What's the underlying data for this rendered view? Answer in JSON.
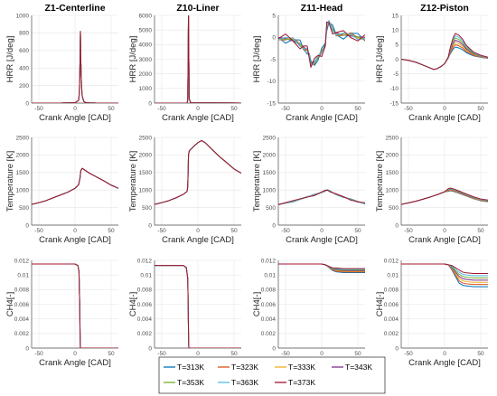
{
  "chart_data": [
    {
      "id": "p1",
      "row": 0,
      "col": 0,
      "type": "line",
      "title": "Z1-Centerline",
      "xlabel": "Crank Angle [CAD]",
      "ylabel": "HRR [J/deg]",
      "xlim": [
        -60,
        60
      ],
      "ylim": [
        0,
        1000
      ],
      "xticks": [
        -50,
        0,
        50
      ],
      "yticks": [
        0,
        200,
        400,
        600,
        800,
        1000
      ],
      "grid": true,
      "curve": {
        "x": [
          -60,
          -20,
          0,
          5,
          6,
          7,
          7.5,
          8,
          9,
          10,
          12,
          15,
          20,
          30,
          60
        ],
        "y": [
          0,
          0,
          5,
          30,
          120,
          500,
          820,
          500,
          200,
          80,
          20,
          5,
          2,
          0,
          0
        ]
      }
    },
    {
      "id": "p2",
      "row": 0,
      "col": 1,
      "type": "line",
      "title": "Z10-Liner",
      "xlabel": "Crank Angle [CAD]",
      "ylabel": "HRR [J/deg]",
      "xlim": [
        -60,
        60
      ],
      "ylim": [
        0,
        6000
      ],
      "xticks": [
        -50,
        0,
        50
      ],
      "yticks": [
        0,
        1000,
        2000,
        3000,
        4000,
        5000,
        6000
      ],
      "grid": true,
      "curve": {
        "x": [
          -60,
          -20,
          -15,
          -14,
          -13.5,
          -13,
          -12.5,
          -12,
          -10,
          60
        ],
        "y": [
          0,
          0,
          10,
          200,
          3500,
          6200,
          3000,
          300,
          20,
          0
        ]
      }
    },
    {
      "id": "p3",
      "row": 0,
      "col": 2,
      "type": "line",
      "title": "Z11-Head",
      "xlabel": "Crank Angle [CAD]",
      "ylabel": "HRR [J/deg]",
      "xlim": [
        -60,
        60
      ],
      "ylim": [
        -15,
        5
      ],
      "xticks": [
        -50,
        0,
        50
      ],
      "yticks": [
        -15,
        -10,
        -5,
        0,
        5
      ],
      "grid": true,
      "curve": {
        "x": [
          -60,
          -50,
          -40,
          -30,
          -25,
          -20,
          -17,
          -15,
          -10,
          -5,
          0,
          5,
          7,
          10,
          15,
          20,
          30,
          40,
          50,
          60
        ],
        "y": [
          0,
          -0.3,
          -0.8,
          -1.6,
          -2.2,
          -3.0,
          -4.5,
          -6.0,
          -5.5,
          -4.8,
          -3.5,
          -1.5,
          2.5,
          3.2,
          1.8,
          1.0,
          0.5,
          0.3,
          0.1,
          0
        ]
      }
    },
    {
      "id": "p4",
      "row": 0,
      "col": 3,
      "type": "line",
      "title": "Z12-Piston",
      "xlabel": "Crank Angle [CAD]",
      "ylabel": "HRR [J/deg]",
      "xlim": [
        -60,
        60
      ],
      "ylim": [
        -15,
        15
      ],
      "xticks": [
        -50,
        0,
        50
      ],
      "yticks": [
        -15,
        -10,
        -5,
        0,
        5,
        10,
        15
      ],
      "grid": true,
      "curve": {
        "x": [
          -60,
          -50,
          -40,
          -30,
          -20,
          -15,
          -10,
          -5,
          0,
          5,
          8,
          12,
          15,
          20,
          25,
          30,
          40,
          50,
          60
        ],
        "y": [
          0,
          -0.4,
          -1.0,
          -2.0,
          -3.0,
          -3.5,
          -3.2,
          -2.5,
          -1.5,
          0.5,
          3.0,
          5.5,
          6.5,
          6.0,
          5.0,
          3.5,
          1.8,
          1.0,
          0.5
        ]
      }
    },
    {
      "id": "p5",
      "row": 1,
      "col": 0,
      "type": "line",
      "title": "",
      "xlabel": "Crank Angle [CAD]",
      "ylabel": "Temperature [K]",
      "xlim": [
        -60,
        60
      ],
      "ylim": [
        0,
        2500
      ],
      "xticks": [
        -50,
        0,
        50
      ],
      "yticks": [
        0,
        500,
        1000,
        1500,
        2000,
        2500
      ],
      "grid": true,
      "curve": {
        "x": [
          -60,
          -50,
          -40,
          -30,
          -20,
          -10,
          0,
          5,
          7,
          8,
          10,
          12,
          20,
          30,
          40,
          50,
          60
        ],
        "y": [
          590,
          640,
          700,
          780,
          860,
          940,
          1050,
          1150,
          1350,
          1550,
          1620,
          1590,
          1480,
          1370,
          1260,
          1140,
          1050
        ]
      }
    },
    {
      "id": "p6",
      "row": 1,
      "col": 1,
      "type": "line",
      "title": "",
      "xlabel": "Crank Angle [CAD]",
      "ylabel": "Temperature [K]",
      "xlim": [
        -60,
        60
      ],
      "ylim": [
        0,
        2500
      ],
      "xticks": [
        -50,
        0,
        50
      ],
      "yticks": [
        0,
        500,
        1000,
        1500,
        2000,
        2500
      ],
      "grid": true,
      "curve": {
        "x": [
          -60,
          -50,
          -40,
          -30,
          -20,
          -15,
          -14,
          -13,
          -12,
          -10,
          -5,
          0,
          5,
          10,
          20,
          30,
          40,
          50,
          60
        ],
        "y": [
          590,
          640,
          700,
          780,
          880,
          960,
          1100,
          2000,
          2110,
          2160,
          2260,
          2350,
          2410,
          2350,
          2150,
          1950,
          1780,
          1600,
          1480
        ]
      }
    },
    {
      "id": "p7",
      "row": 1,
      "col": 2,
      "type": "line",
      "title": "",
      "xlabel": "Crank Angle [CAD]",
      "ylabel": "Temperature [K]",
      "xlim": [
        -60,
        60
      ],
      "ylim": [
        0,
        2500
      ],
      "xticks": [
        -50,
        0,
        50
      ],
      "yticks": [
        0,
        500,
        1000,
        1500,
        2000,
        2500
      ],
      "grid": true,
      "curve": {
        "x": [
          -60,
          -40,
          -20,
          -10,
          0,
          5,
          8,
          12,
          20,
          30,
          40,
          50,
          60
        ],
        "y": [
          590,
          680,
          800,
          860,
          940,
          980,
          1000,
          960,
          880,
          800,
          730,
          670,
          620
        ]
      }
    },
    {
      "id": "p8",
      "row": 1,
      "col": 3,
      "type": "line",
      "title": "",
      "xlabel": "Crank Angle [CAD]",
      "ylabel": "Temperature [K]",
      "xlim": [
        -60,
        60
      ],
      "ylim": [
        0,
        2500
      ],
      "xticks": [
        -50,
        0,
        50
      ],
      "yticks": [
        0,
        500,
        1000,
        1500,
        2000,
        2500
      ],
      "grid": true,
      "curve": {
        "x": [
          -60,
          -40,
          -20,
          -10,
          0,
          5,
          8,
          12,
          20,
          30,
          40,
          50,
          60
        ],
        "y": [
          590,
          680,
          800,
          870,
          950,
          1000,
          1020,
          1000,
          940,
          860,
          780,
          720,
          690
        ]
      }
    },
    {
      "id": "p9",
      "row": 2,
      "col": 0,
      "type": "line",
      "title": "",
      "xlabel": "Crank Angle [CAD]",
      "ylabel": "CH4[-]",
      "xlim": [
        -60,
        60
      ],
      "ylim": [
        0,
        0.012
      ],
      "xticks": [
        -50,
        0,
        50
      ],
      "yticks": [
        0,
        0.002,
        0.004,
        0.006,
        0.008,
        0.01,
        0.012
      ],
      "grid": true,
      "curve": {
        "x": [
          -60,
          0,
          4,
          5.5,
          6.5,
          7,
          7.5,
          60
        ],
        "y": [
          0.0115,
          0.0115,
          0.0113,
          0.0105,
          0.006,
          0.002,
          0,
          0
        ]
      }
    },
    {
      "id": "p10",
      "row": 2,
      "col": 1,
      "type": "line",
      "title": "",
      "xlabel": "Crank Angle [CAD]",
      "ylabel": "CH4[-]",
      "xlim": [
        -60,
        60
      ],
      "ylim": [
        0,
        0.012
      ],
      "xticks": [
        -50,
        0,
        50
      ],
      "yticks": [
        0,
        0.002,
        0.004,
        0.006,
        0.008,
        0.01,
        0.012
      ],
      "grid": true,
      "curve": {
        "x": [
          -60,
          -20,
          -16,
          -14,
          -13.5,
          -13,
          -12.5,
          60
        ],
        "y": [
          0.0113,
          0.0113,
          0.011,
          0.0095,
          0.006,
          0.002,
          0,
          0
        ]
      }
    },
    {
      "id": "p11",
      "row": 2,
      "col": 2,
      "type": "line",
      "title": "",
      "xlabel": "Crank Angle [CAD]",
      "ylabel": "CH4[-]",
      "xlim": [
        -60,
        60
      ],
      "ylim": [
        0,
        0.012
      ],
      "xticks": [
        -50,
        0,
        50
      ],
      "yticks": [
        0,
        0.002,
        0.004,
        0.006,
        0.008,
        0.01,
        0.012
      ],
      "grid": true,
      "curve": {
        "x": [
          -60,
          0,
          5,
          10,
          15,
          20,
          30,
          60
        ],
        "y": [
          0.0115,
          0.0115,
          0.0114,
          0.0111,
          0.0108,
          0.0107,
          0.0106,
          0.0106
        ]
      }
    },
    {
      "id": "p12",
      "row": 2,
      "col": 3,
      "type": "line",
      "title": "",
      "xlabel": "Crank Angle [CAD]",
      "ylabel": "CH4[-]",
      "xlim": [
        -60,
        60
      ],
      "ylim": [
        0,
        0.012
      ],
      "xticks": [
        -50,
        0,
        50
      ],
      "yticks": [
        0,
        0.002,
        0.004,
        0.006,
        0.008,
        0.01,
        0.012
      ],
      "grid": true,
      "curve": {
        "x": [
          -60,
          0,
          5,
          10,
          15,
          20,
          25,
          30,
          40,
          50,
          60
        ],
        "y": [
          0.0115,
          0.0115,
          0.0114,
          0.011,
          0.0104,
          0.0098,
          0.0095,
          0.0094,
          0.0093,
          0.0093,
          0.0093
        ]
      }
    }
  ],
  "series": [
    {
      "name": "T=313K",
      "color": "#0072bd"
    },
    {
      "name": "T=323K",
      "color": "#d95319"
    },
    {
      "name": "T=333K",
      "color": "#edb120"
    },
    {
      "name": "T=343K",
      "color": "#7e2f8e"
    },
    {
      "name": "T=353K",
      "color": "#77ac30"
    },
    {
      "name": "T=363K",
      "color": "#4dbeee"
    },
    {
      "name": "T=373K",
      "color": "#a2142f"
    }
  ],
  "legend": {
    "placement": "bottom-center",
    "columns": 4
  },
  "colors": {
    "grid": "#e6e6e6",
    "axis": "#4d4d4d"
  }
}
